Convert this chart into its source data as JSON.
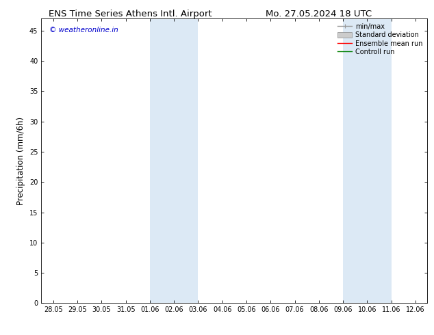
{
  "title_left": "ENS Time Series Athens Intl. Airport",
  "title_right": "Mo. 27.05.2024 18 UTC",
  "ylabel": "Precipitation (mm/6h)",
  "watermark": "© weatheronline.in",
  "watermark_color": "#0000cc",
  "x_tick_labels": [
    "28.05",
    "29.05",
    "30.05",
    "31.05",
    "01.06",
    "02.06",
    "03.06",
    "04.06",
    "05.06",
    "06.06",
    "07.06",
    "08.06",
    "09.06",
    "10.06",
    "11.06",
    "12.06"
  ],
  "x_tick_positions": [
    0,
    1,
    2,
    3,
    4,
    5,
    6,
    7,
    8,
    9,
    10,
    11,
    12,
    13,
    14,
    15
  ],
  "ylim": [
    0,
    47
  ],
  "yticks": [
    0,
    5,
    10,
    15,
    20,
    25,
    30,
    35,
    40,
    45
  ],
  "background_color": "#ffffff",
  "plot_bg_color": "#ffffff",
  "shade_regions": [
    {
      "x_start": 4,
      "x_end": 6,
      "color": "#dce9f5"
    },
    {
      "x_start": 12,
      "x_end": 14,
      "color": "#dce9f5"
    }
  ],
  "legend_entries": [
    {
      "label": "min/max",
      "color": "#999999",
      "lw": 1.0,
      "ls": "-",
      "type": "errorbar"
    },
    {
      "label": "Standard deviation",
      "color": "#cccccc",
      "lw": 6,
      "ls": "-",
      "type": "patch"
    },
    {
      "label": "Ensemble mean run",
      "color": "#ff0000",
      "lw": 1.0,
      "ls": "-",
      "type": "line"
    },
    {
      "label": "Controll run",
      "color": "#008000",
      "lw": 1.0,
      "ls": "-",
      "type": "line"
    }
  ],
  "title_fontsize": 9.5,
  "tick_fontsize": 7.0,
  "ylabel_fontsize": 8.5,
  "watermark_fontsize": 7.5,
  "legend_fontsize": 7.0
}
